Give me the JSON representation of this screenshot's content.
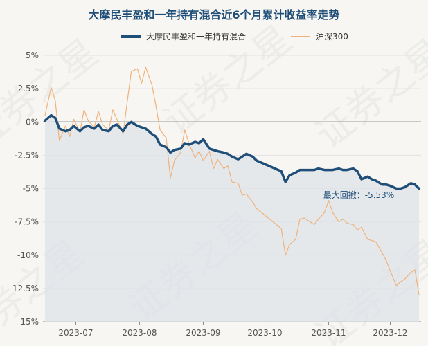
{
  "chart_data": {
    "type": "line",
    "title": "大摩民丰盈和一年持有混合近6个月累计收益率走势",
    "xlabel": "",
    "ylabel": "",
    "ylim": [
      -15,
      5
    ],
    "yticks": [
      5,
      2.5,
      0,
      -2.5,
      -5,
      -7.5,
      -10,
      -12.5,
      -15
    ],
    "ytick_labels": [
      "5%",
      "2.5%",
      "0%",
      "-2.5%",
      "-5%",
      "-7.5%",
      "-10%",
      "-12.5%",
      "-15%"
    ],
    "xtick_labels": [
      "2023-07",
      "2023-08",
      "2023-09",
      "2023-10",
      "2023-11",
      "2023-12"
    ],
    "xtick_dates": [
      "2023-07-01",
      "2023-08-01",
      "2023-09-01",
      "2023-10-01",
      "2023-11-01",
      "2023-12-01"
    ],
    "xlim": [
      "2023-06-15",
      "2023-12-16"
    ],
    "grid": "horizontal",
    "legend_position": "top-center",
    "annotation": "最大回撤：-5.53%",
    "watermark": "证券之星",
    "series": [
      {
        "name": "大摩民丰盈和一年持有混合",
        "color": "#1f4e79",
        "fill": "#dde3e8",
        "x": [
          "2023-06-16",
          "2023-06-19",
          "2023-06-21",
          "2023-06-23",
          "2023-06-26",
          "2023-06-28",
          "2023-06-30",
          "2023-07-03",
          "2023-07-05",
          "2023-07-07",
          "2023-07-10",
          "2023-07-12",
          "2023-07-14",
          "2023-07-17",
          "2023-07-19",
          "2023-07-21",
          "2023-07-24",
          "2023-07-26",
          "2023-07-28",
          "2023-07-31",
          "2023-08-02",
          "2023-08-04",
          "2023-08-07",
          "2023-08-09",
          "2023-08-11",
          "2023-08-14",
          "2023-08-16",
          "2023-08-18",
          "2023-08-21",
          "2023-08-23",
          "2023-08-25",
          "2023-08-28",
          "2023-08-30",
          "2023-09-01",
          "2023-09-04",
          "2023-09-06",
          "2023-09-08",
          "2023-09-11",
          "2023-09-13",
          "2023-09-15",
          "2023-09-18",
          "2023-09-20",
          "2023-09-22",
          "2023-09-25",
          "2023-09-27",
          "2023-10-09",
          "2023-10-11",
          "2023-10-13",
          "2023-10-16",
          "2023-10-18",
          "2023-10-20",
          "2023-10-23",
          "2023-10-25",
          "2023-10-27",
          "2023-10-30",
          "2023-11-01",
          "2023-11-03",
          "2023-11-06",
          "2023-11-08",
          "2023-11-10",
          "2023-11-13",
          "2023-11-15",
          "2023-11-17",
          "2023-11-20",
          "2023-11-22",
          "2023-11-24",
          "2023-11-27",
          "2023-11-29",
          "2023-12-01",
          "2023-12-04",
          "2023-12-06",
          "2023-12-08",
          "2023-12-11",
          "2023-12-13",
          "2023-12-15"
        ],
        "values": [
          0.1,
          0.5,
          0.3,
          -0.5,
          -0.7,
          -0.6,
          -0.3,
          -0.7,
          -0.4,
          -0.3,
          -0.5,
          -0.2,
          -0.6,
          -0.7,
          -0.3,
          -0.2,
          -0.7,
          -0.2,
          0.0,
          -0.3,
          -0.4,
          -0.5,
          -0.9,
          -1.1,
          -1.7,
          -1.9,
          -2.3,
          -2.1,
          -2.0,
          -1.6,
          -1.7,
          -1.5,
          -1.6,
          -1.3,
          -2.0,
          -2.1,
          -2.2,
          -2.3,
          -2.4,
          -2.6,
          -2.8,
          -2.6,
          -2.4,
          -2.6,
          -2.9,
          -3.7,
          -4.5,
          -4.0,
          -3.8,
          -3.6,
          -3.6,
          -3.6,
          -3.6,
          -3.5,
          -3.6,
          -3.6,
          -3.6,
          -3.5,
          -3.6,
          -3.6,
          -3.5,
          -3.7,
          -4.3,
          -4.1,
          -4.3,
          -4.4,
          -4.7,
          -4.7,
          -4.8,
          -5.0,
          -5.0,
          -4.9,
          -4.6,
          -4.7,
          -5.0
        ]
      },
      {
        "name": "沪深300",
        "color": "#f0b27a",
        "x": [
          "2023-06-16",
          "2023-06-19",
          "2023-06-21",
          "2023-06-23",
          "2023-06-26",
          "2023-06-28",
          "2023-06-30",
          "2023-07-03",
          "2023-07-05",
          "2023-07-07",
          "2023-07-10",
          "2023-07-12",
          "2023-07-14",
          "2023-07-17",
          "2023-07-19",
          "2023-07-21",
          "2023-07-24",
          "2023-07-26",
          "2023-07-28",
          "2023-07-31",
          "2023-08-02",
          "2023-08-04",
          "2023-08-07",
          "2023-08-09",
          "2023-08-11",
          "2023-08-14",
          "2023-08-16",
          "2023-08-18",
          "2023-08-21",
          "2023-08-23",
          "2023-08-25",
          "2023-08-28",
          "2023-08-30",
          "2023-09-01",
          "2023-09-04",
          "2023-09-06",
          "2023-09-08",
          "2023-09-11",
          "2023-09-13",
          "2023-09-15",
          "2023-09-18",
          "2023-09-20",
          "2023-09-22",
          "2023-09-25",
          "2023-09-27",
          "2023-10-09",
          "2023-10-11",
          "2023-10-13",
          "2023-10-16",
          "2023-10-18",
          "2023-10-20",
          "2023-10-23",
          "2023-10-25",
          "2023-10-27",
          "2023-10-30",
          "2023-11-01",
          "2023-11-03",
          "2023-11-06",
          "2023-11-08",
          "2023-11-10",
          "2023-11-13",
          "2023-11-15",
          "2023-11-17",
          "2023-11-20",
          "2023-11-22",
          "2023-11-24",
          "2023-11-27",
          "2023-11-29",
          "2023-12-01",
          "2023-12-04",
          "2023-12-06",
          "2023-12-08",
          "2023-12-11",
          "2023-12-13",
          "2023-12-15"
        ],
        "values": [
          0.5,
          2.6,
          1.6,
          -1.4,
          -0.3,
          -1.1,
          0.2,
          -0.8,
          0.9,
          0.1,
          -0.4,
          0.8,
          -0.2,
          -0.6,
          0.9,
          0.2,
          -0.9,
          1.5,
          3.8,
          4.0,
          2.9,
          4.1,
          2.8,
          1.2,
          -0.6,
          -1.2,
          -4.2,
          -2.9,
          -2.3,
          -0.6,
          -1.6,
          -2.7,
          -2.2,
          -2.9,
          -2.2,
          -3.5,
          -2.8,
          -3.5,
          -3.3,
          -4.5,
          -4.6,
          -5.5,
          -5.4,
          -6.0,
          -6.5,
          -8.0,
          -10.0,
          -9.2,
          -8.8,
          -7.3,
          -7.2,
          -7.5,
          -7.7,
          -7.3,
          -6.8,
          -5.9,
          -6.8,
          -7.5,
          -7.3,
          -7.6,
          -7.7,
          -8.1,
          -7.9,
          -8.8,
          -8.9,
          -9.0,
          -9.8,
          -10.4,
          -11.2,
          -12.3,
          -12.0,
          -11.8,
          -11.3,
          -11.1,
          -13.0
        ]
      }
    ]
  }
}
